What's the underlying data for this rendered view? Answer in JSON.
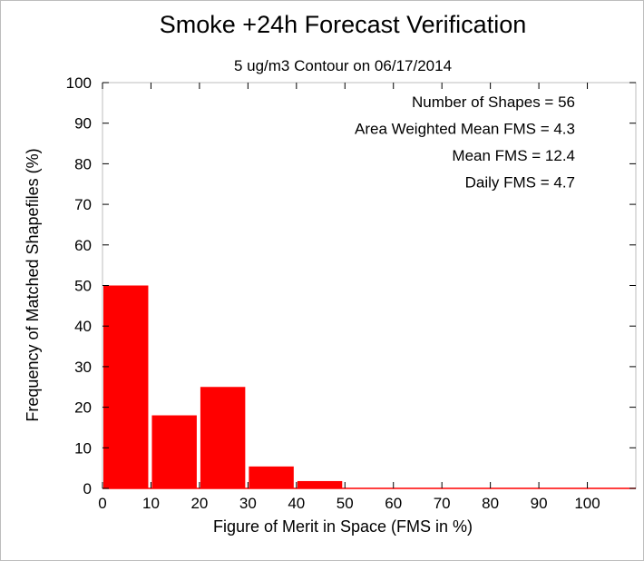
{
  "chart_data": {
    "type": "bar",
    "title": "Smoke +24h Forecast Verification",
    "subtitle": "5 ug/m3 Contour on 06/17/2014",
    "xlabel": "Figure of Merit in Space (FMS in %)",
    "ylabel": "Frequency of Matched Shapefiles (%)",
    "xlim": [
      0,
      110
    ],
    "ylim": [
      0,
      100
    ],
    "bin_width": 10,
    "xticks": [
      0,
      10,
      20,
      30,
      40,
      50,
      60,
      70,
      80,
      90,
      100
    ],
    "yticks": [
      0,
      10,
      20,
      30,
      40,
      50,
      60,
      70,
      80,
      90,
      100
    ],
    "x": [
      0,
      10,
      20,
      30,
      40,
      50,
      60,
      70,
      80,
      90,
      100
    ],
    "values": [
      50,
      18,
      25,
      5.4,
      1.8,
      0,
      0,
      0,
      0,
      0,
      0
    ],
    "bar_color": "#ff0000",
    "grid": false,
    "annotations": [
      "Number of Shapes = 56",
      "Area Weighted Mean FMS = 4.3",
      "Mean FMS = 12.4",
      "Daily FMS = 4.7"
    ],
    "annotation_placement": "top-right"
  }
}
